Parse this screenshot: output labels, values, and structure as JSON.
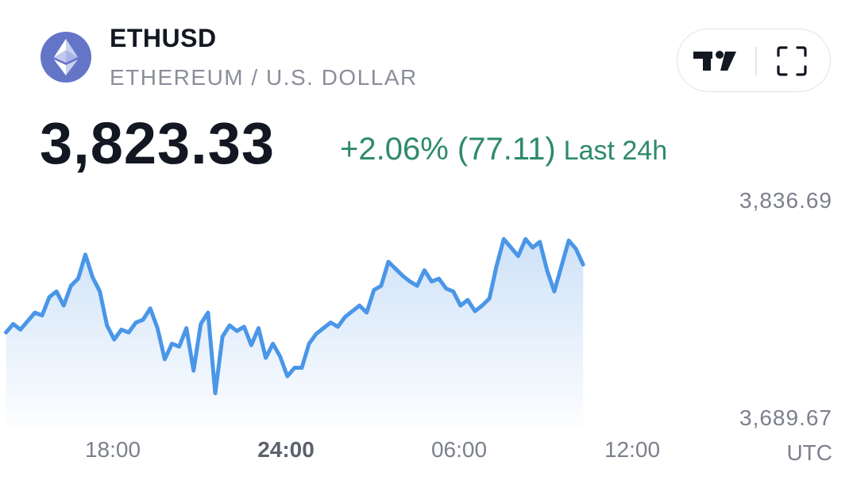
{
  "header": {
    "symbol": "ETHUSD",
    "full_name": "ETHEREUM / U.S. DOLLAR",
    "price": "3,823.33",
    "change": "+2.06% (77.11)",
    "change_period": "Last 24h",
    "logo_icon": "ethereum-icon",
    "logo_color": "#6475c8"
  },
  "toolbar": {
    "tradingview_icon": "tradingview-logo-icon",
    "fullscreen_icon": "fullscreen-icon"
  },
  "colors": {
    "line": "#4a96e8",
    "fill_top": "#cfe2f8",
    "positive": "#2e8a6e"
  },
  "chart_data": {
    "type": "area",
    "x_ticks": [
      "18:00",
      "24:00",
      "06:00",
      "12:00"
    ],
    "x_tick_bold": "24:00",
    "timezone_label": "UTC",
    "y_labels": [
      "3,836.69",
      "3,689.67"
    ],
    "ylim": [
      3689.67,
      3836.69
    ],
    "x_range_hours": [
      -3.7,
      16.3
    ],
    "series": [
      {
        "x": [
          -3.7,
          -3.45,
          -3.2,
          -2.95,
          -2.7,
          -2.45,
          -2.2,
          -1.95,
          -1.7,
          -1.45,
          -1.2,
          -0.95,
          -0.7,
          -0.45,
          -0.2,
          0.05,
          0.3,
          0.55,
          0.8,
          1.05,
          1.3,
          1.55,
          1.8,
          2.05,
          2.3,
          2.55,
          2.8,
          3.05,
          3.3,
          3.55,
          3.8,
          4.05,
          4.3,
          4.55,
          4.8,
          5.05,
          5.3,
          5.55,
          5.8,
          6.05,
          6.3,
          6.55,
          6.8,
          7.05,
          7.3,
          7.55,
          7.8,
          8.05,
          8.3,
          8.55,
          8.8,
          9.05,
          9.3,
          9.55,
          9.8,
          10.05,
          10.3,
          10.55,
          10.8,
          11.05,
          11.3,
          11.55,
          11.8,
          12.05,
          12.3,
          12.55,
          12.8,
          13.05,
          13.3,
          13.55,
          13.8,
          14.05,
          14.3,
          14.55,
          14.8,
          15.05,
          15.3,
          15.55,
          15.8,
          16.05,
          16.3
        ],
        "values": [
          3743,
          3749,
          3745,
          3751,
          3757,
          3755,
          3768,
          3772,
          3762,
          3776,
          3781,
          3798,
          3782,
          3772,
          3748,
          3738,
          3745,
          3743,
          3750,
          3752,
          3760,
          3746,
          3724,
          3735,
          3733,
          3746,
          3716,
          3749,
          3757,
          3700,
          3740,
          3748,
          3744,
          3747,
          3734,
          3746,
          3725,
          3735,
          3726,
          3712,
          3718,
          3718,
          3735,
          3742,
          3746,
          3750,
          3747,
          3754,
          3758,
          3762,
          3757,
          3773,
          3776,
          3793,
          3788,
          3783,
          3779,
          3776,
          3787,
          3779,
          3781,
          3774,
          3772,
          3762,
          3766,
          3758,
          3762,
          3767,
          3790,
          3809,
          3803,
          3797,
          3809,
          3803,
          3807,
          3787,
          3772,
          3790,
          3808,
          3802,
          3791
        ]
      }
    ]
  }
}
